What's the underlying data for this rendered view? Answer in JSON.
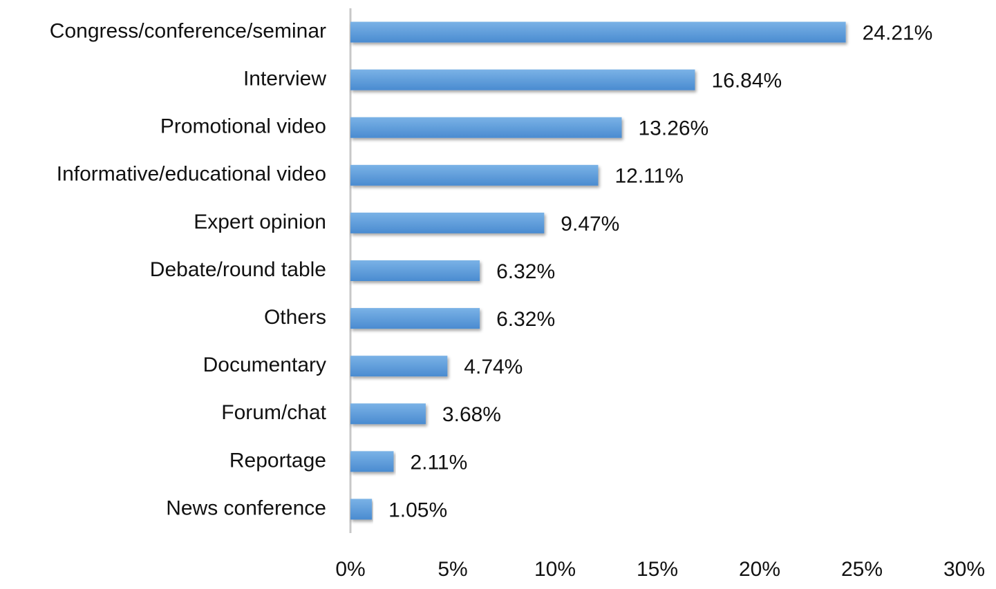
{
  "chart_data": {
    "type": "bar",
    "orientation": "horizontal",
    "categories": [
      "Congress/conference/seminar",
      "Interview",
      "Promotional video",
      "Informative/educational video",
      "Expert opinion",
      "Debate/round table",
      "Others",
      "Documentary",
      "Forum/chat",
      "Reportage",
      "News conference"
    ],
    "values": [
      24.21,
      16.84,
      13.26,
      12.11,
      9.47,
      6.32,
      6.32,
      4.74,
      3.68,
      2.11,
      1.05
    ],
    "value_labels": [
      "24.21%",
      "16.84%",
      "13.26%",
      "12.11%",
      "9.47%",
      "6.32%",
      "6.32%",
      "4.74%",
      "3.68%",
      "2.11%",
      "1.05%"
    ],
    "color": "#5b9bd5",
    "xlim": [
      0,
      30
    ],
    "xticks": [
      {
        "value": 0,
        "label": "0%"
      },
      {
        "value": 5,
        "label": "5%"
      },
      {
        "value": 10,
        "label": "10%"
      },
      {
        "value": 15,
        "label": "15%"
      },
      {
        "value": 20,
        "label": "20%"
      },
      {
        "value": 25,
        "label": "25%"
      },
      {
        "value": 30,
        "label": "30%"
      }
    ],
    "grid": false
  }
}
